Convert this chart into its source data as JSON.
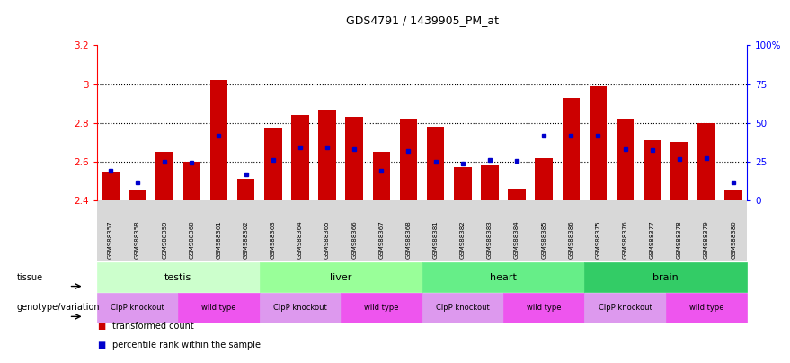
{
  "title": "GDS4791 / 1439905_PM_at",
  "samples": [
    "GSM988357",
    "GSM988358",
    "GSM988359",
    "GSM988360",
    "GSM988361",
    "GSM988362",
    "GSM988363",
    "GSM988364",
    "GSM988365",
    "GSM988366",
    "GSM988367",
    "GSM988368",
    "GSM988381",
    "GSM988382",
    "GSM988383",
    "GSM988384",
    "GSM988385",
    "GSM988386",
    "GSM988375",
    "GSM988376",
    "GSM988377",
    "GSM988378",
    "GSM988379",
    "GSM988380"
  ],
  "bar_values": [
    2.55,
    2.45,
    2.65,
    2.6,
    3.02,
    2.51,
    2.77,
    2.84,
    2.87,
    2.83,
    2.65,
    2.82,
    2.78,
    2.57,
    2.58,
    2.46,
    2.62,
    2.93,
    2.99,
    2.82,
    2.71,
    2.7,
    2.8,
    2.45
  ],
  "percentile_values": [
    2.555,
    2.495,
    2.6,
    2.595,
    2.735,
    2.535,
    2.61,
    2.675,
    2.675,
    2.665,
    2.555,
    2.655,
    2.6,
    2.59,
    2.61,
    2.605,
    2.735,
    2.735,
    2.735,
    2.665,
    2.66,
    2.615,
    2.62,
    2.495
  ],
  "ymin": 2.4,
  "ymax": 3.2,
  "yticks": [
    2.4,
    2.6,
    2.8,
    3.0,
    3.2
  ],
  "ytick_labels_left": [
    "2.4",
    "2.6",
    "2.8",
    "3",
    "3.2"
  ],
  "ytick_labels_right": [
    "0",
    "25",
    "50",
    "75",
    "100%"
  ],
  "dotted_lines": [
    2.6,
    2.8,
    3.0
  ],
  "bar_color": "#cc0000",
  "percentile_color": "#0000cc",
  "tissue_groups": [
    {
      "label": "testis",
      "start": 0,
      "end": 5,
      "color": "#ccffcc"
    },
    {
      "label": "liver",
      "start": 6,
      "end": 11,
      "color": "#99ff99"
    },
    {
      "label": "heart",
      "start": 12,
      "end": 17,
      "color": "#66ee88"
    },
    {
      "label": "brain",
      "start": 18,
      "end": 23,
      "color": "#33cc66"
    }
  ],
  "genotype_groups": [
    {
      "label": "ClpP knockout",
      "start": 0,
      "end": 2,
      "color": "#dd99ee"
    },
    {
      "label": "wild type",
      "start": 3,
      "end": 5,
      "color": "#ee55ee"
    },
    {
      "label": "ClpP knockout",
      "start": 6,
      "end": 8,
      "color": "#dd99ee"
    },
    {
      "label": "wild type",
      "start": 9,
      "end": 11,
      "color": "#ee55ee"
    },
    {
      "label": "ClpP knockout",
      "start": 12,
      "end": 14,
      "color": "#dd99ee"
    },
    {
      "label": "wild type",
      "start": 15,
      "end": 17,
      "color": "#ee55ee"
    },
    {
      "label": "ClpP knockout",
      "start": 18,
      "end": 20,
      "color": "#dd99ee"
    },
    {
      "label": "wild type",
      "start": 21,
      "end": 23,
      "color": "#ee55ee"
    }
  ],
  "tissue_row_label": "tissue",
  "genotype_row_label": "genotype/variation",
  "legend_items": [
    {
      "label": "transformed count",
      "color": "#cc0000"
    },
    {
      "label": "percentile rank within the sample",
      "color": "#0000cc"
    }
  ],
  "n_samples": 24
}
